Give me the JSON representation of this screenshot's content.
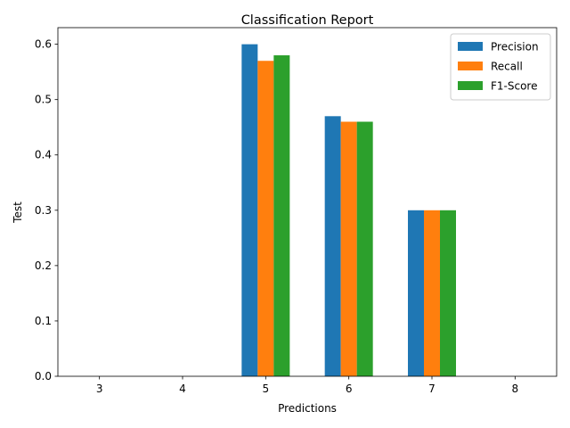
{
  "chart_data": {
    "type": "bar",
    "title": "Classification Report",
    "xlabel": "Predictions",
    "ylabel": "Test",
    "categories": [
      "3",
      "4",
      "5",
      "6",
      "7",
      "8"
    ],
    "series": [
      {
        "name": "Precision",
        "color": "#1f77b4",
        "values": [
          0,
          0,
          0.6,
          0.47,
          0.3,
          0
        ]
      },
      {
        "name": "Recall",
        "color": "#ff7f0e",
        "values": [
          0,
          0,
          0.57,
          0.46,
          0.3,
          0
        ]
      },
      {
        "name": "F1-Score",
        "color": "#2ca02c",
        "values": [
          0,
          0,
          0.58,
          0.46,
          0.3,
          0
        ]
      }
    ],
    "ylim": [
      0,
      0.63
    ],
    "yticks": [
      0.0,
      0.1,
      0.2,
      0.3,
      0.4,
      0.5,
      0.6
    ],
    "ytick_labels": [
      "0.0",
      "0.1",
      "0.2",
      "0.3",
      "0.4",
      "0.5",
      "0.6"
    ],
    "grid": false,
    "legend": "top-right"
  }
}
